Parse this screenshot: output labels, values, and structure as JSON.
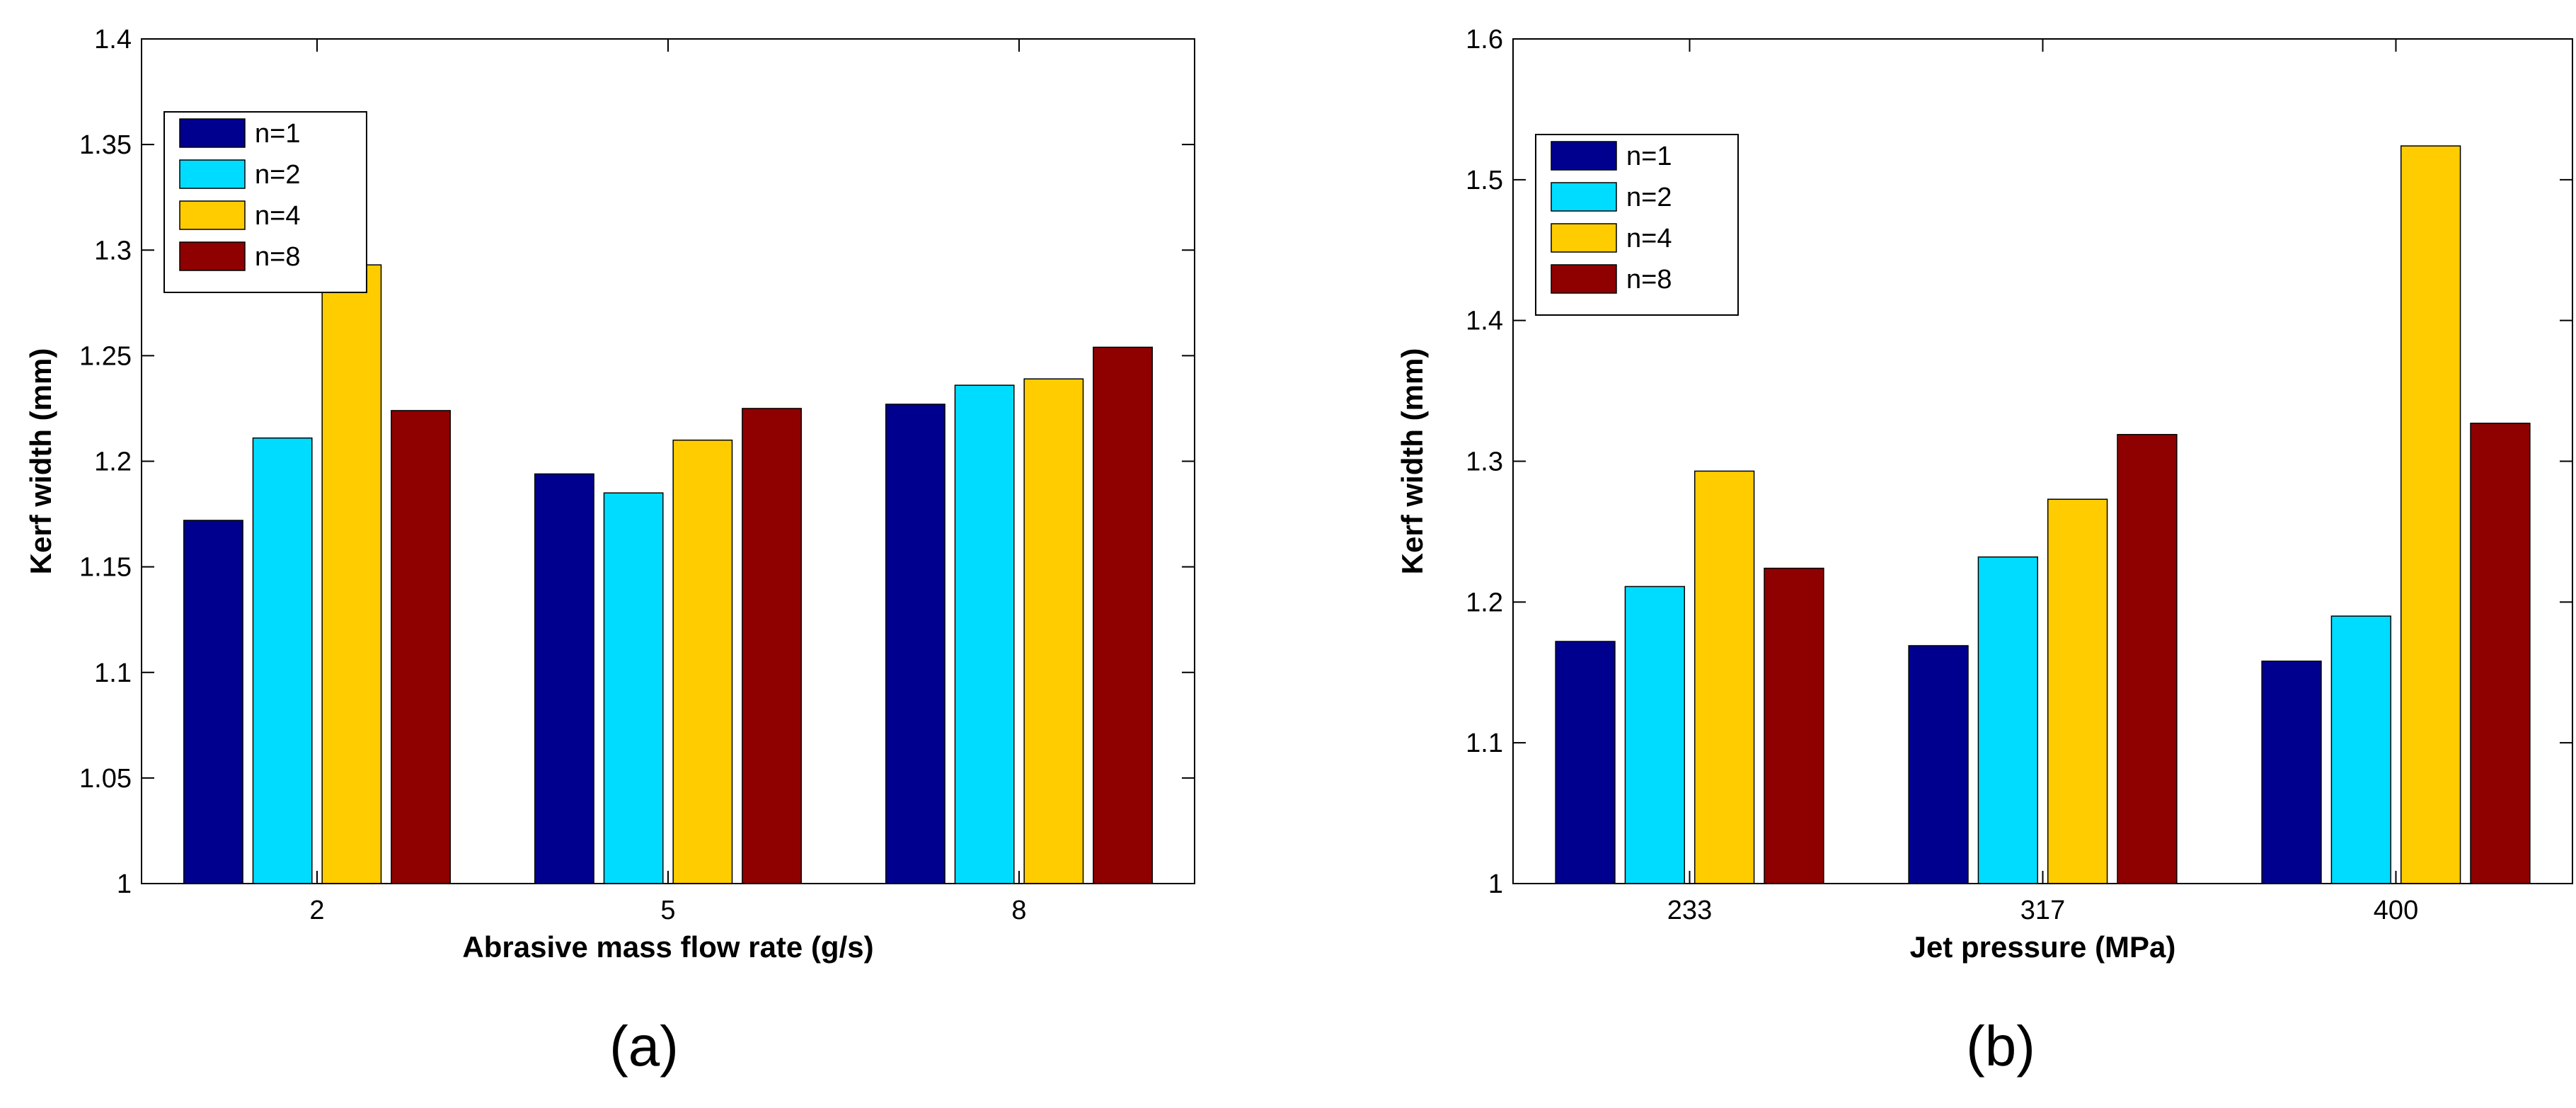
{
  "chart_data": [
    {
      "type": "bar",
      "id": "a",
      "caption": "(a)",
      "xlabel": "Abrasive mass flow rate (g/s)",
      "ylabel": "Kerf width (mm)",
      "categories": [
        "2",
        "5",
        "8"
      ],
      "ylim": [
        1,
        1.4
      ],
      "yticks": [
        1,
        1.05,
        1.1,
        1.15,
        1.2,
        1.25,
        1.3,
        1.35,
        1.4
      ],
      "ytick_labels": [
        "1",
        "1.05",
        "1.1",
        "1.15",
        "1.2",
        "1.25",
        "1.3",
        "1.35",
        "1.4"
      ],
      "legend_position": "top-left",
      "series": [
        {
          "name": "n=1",
          "color": "#00008F",
          "values": [
            1.172,
            1.194,
            1.227
          ]
        },
        {
          "name": "n=2",
          "color": "#00DCFF",
          "values": [
            1.211,
            1.185,
            1.236
          ]
        },
        {
          "name": "n=4",
          "color": "#FFCC00",
          "values": [
            1.293,
            1.21,
            1.239
          ]
        },
        {
          "name": "n=8",
          "color": "#8F0000",
          "values": [
            1.224,
            1.225,
            1.254
          ]
        }
      ]
    },
    {
      "type": "bar",
      "id": "b",
      "caption": "(b)",
      "xlabel": "Jet pressure (MPa)",
      "ylabel": "Kerf width (mm)",
      "categories": [
        "233",
        "317",
        "400"
      ],
      "ylim": [
        1,
        1.6
      ],
      "yticks": [
        1,
        1.1,
        1.2,
        1.3,
        1.4,
        1.5,
        1.6
      ],
      "ytick_labels": [
        "1",
        "1.1",
        "1.2",
        "1.3",
        "1.4",
        "1.5",
        "1.6"
      ],
      "legend_position": "top-left",
      "series": [
        {
          "name": "n=1",
          "color": "#00008F",
          "values": [
            1.172,
            1.169,
            1.158
          ]
        },
        {
          "name": "n=2",
          "color": "#00DCFF",
          "values": [
            1.211,
            1.232,
            1.19
          ]
        },
        {
          "name": "n=4",
          "color": "#FFCC00",
          "values": [
            1.293,
            1.273,
            1.524
          ]
        },
        {
          "name": "n=8",
          "color": "#8F0000",
          "values": [
            1.224,
            1.319,
            1.327
          ]
        }
      ]
    }
  ]
}
